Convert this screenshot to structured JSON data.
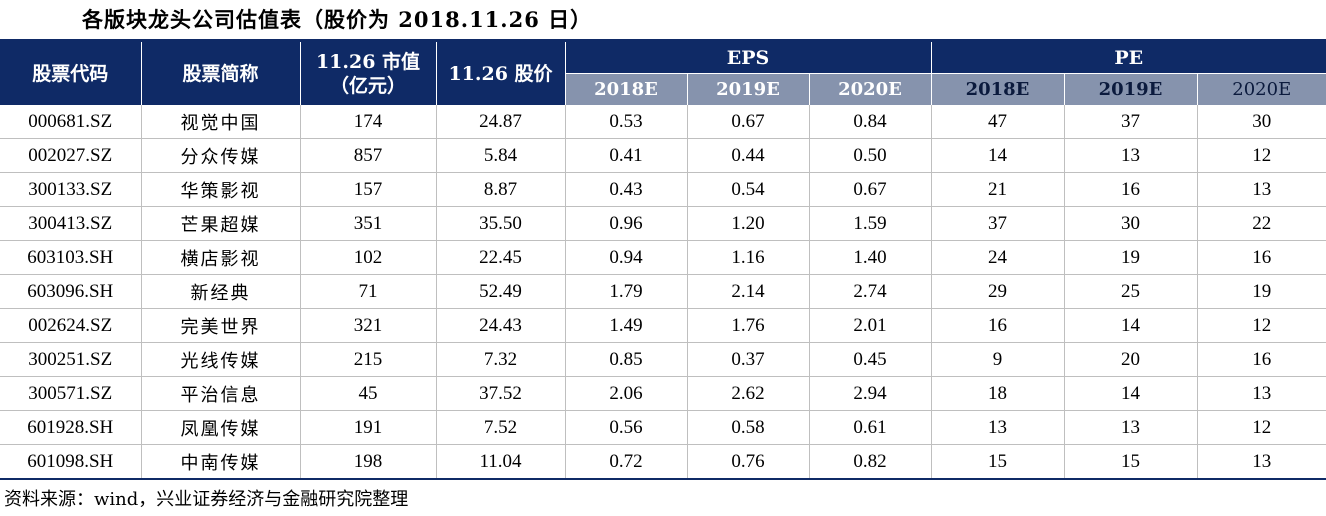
{
  "title": "各版块龙头公司估值表（股价为 2018.11.26 日）",
  "header": {
    "code": "股票代码",
    "name": "股票简称",
    "mcap_line1": "11.26 市值",
    "mcap_line2": "（亿元）",
    "price": "11.26 股价",
    "eps": "EPS",
    "pe": "PE",
    "years": [
      "2018E",
      "2019E",
      "2020E"
    ]
  },
  "rows": [
    {
      "code": "000681.SZ",
      "name": "视觉中国",
      "mcap": "174",
      "price": "24.87",
      "eps": [
        "0.53",
        "0.67",
        "0.84"
      ],
      "pe": [
        "47",
        "37",
        "30"
      ]
    },
    {
      "code": "002027.SZ",
      "name": "分众传媒",
      "mcap": "857",
      "price": "5.84",
      "eps": [
        "0.41",
        "0.44",
        "0.50"
      ],
      "pe": [
        "14",
        "13",
        "12"
      ]
    },
    {
      "code": "300133.SZ",
      "name": "华策影视",
      "mcap": "157",
      "price": "8.87",
      "eps": [
        "0.43",
        "0.54",
        "0.67"
      ],
      "pe": [
        "21",
        "16",
        "13"
      ]
    },
    {
      "code": "300413.SZ",
      "name": "芒果超媒",
      "mcap": "351",
      "price": "35.50",
      "eps": [
        "0.96",
        "1.20",
        "1.59"
      ],
      "pe": [
        "37",
        "30",
        "22"
      ]
    },
    {
      "code": "603103.SH",
      "name": "横店影视",
      "mcap": "102",
      "price": "22.45",
      "eps": [
        "0.94",
        "1.16",
        "1.40"
      ],
      "pe": [
        "24",
        "19",
        "16"
      ]
    },
    {
      "code": "603096.SH",
      "name": "新经典",
      "mcap": "71",
      "price": "52.49",
      "eps": [
        "1.79",
        "2.14",
        "2.74"
      ],
      "pe": [
        "29",
        "25",
        "19"
      ]
    },
    {
      "code": "002624.SZ",
      "name": "完美世界",
      "mcap": "321",
      "price": "24.43",
      "eps": [
        "1.49",
        "1.76",
        "2.01"
      ],
      "pe": [
        "16",
        "14",
        "12"
      ]
    },
    {
      "code": "300251.SZ",
      "name": "光线传媒",
      "mcap": "215",
      "price": "7.32",
      "eps": [
        "0.85",
        "0.37",
        "0.45"
      ],
      "pe": [
        "9",
        "20",
        "16"
      ]
    },
    {
      "code": "300571.SZ",
      "name": "平治信息",
      "mcap": "45",
      "price": "37.52",
      "eps": [
        "2.06",
        "2.62",
        "2.94"
      ],
      "pe": [
        "18",
        "14",
        "13"
      ]
    },
    {
      "code": "601928.SH",
      "name": "凤凰传媒",
      "mcap": "191",
      "price": "7.52",
      "eps": [
        "0.56",
        "0.58",
        "0.61"
      ],
      "pe": [
        "13",
        "13",
        "12"
      ]
    },
    {
      "code": "601098.SH",
      "name": "中南传媒",
      "mcap": "198",
      "price": "11.04",
      "eps": [
        "0.72",
        "0.76",
        "0.82"
      ],
      "pe": [
        "15",
        "15",
        "13"
      ]
    }
  ],
  "source": "资料来源：wind，兴业证券经济与金融研究院整理"
}
